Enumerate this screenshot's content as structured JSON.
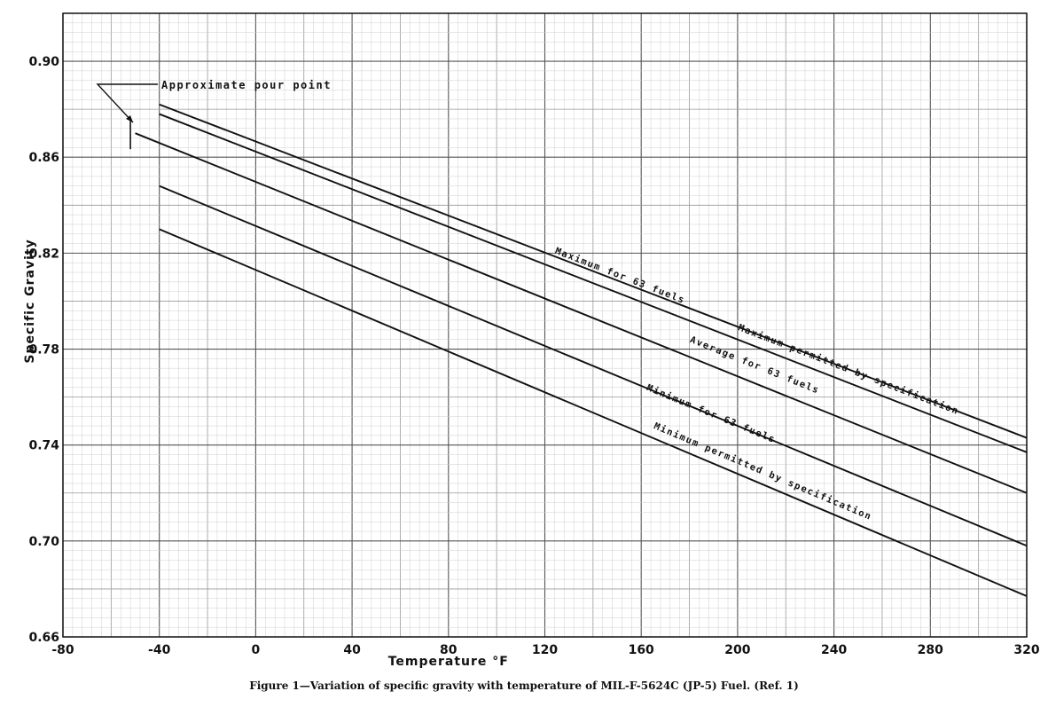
{
  "chart_data": {
    "type": "line",
    "xlabel": "Temperature °F",
    "ylabel": "Specific Gravity",
    "xlim": [
      -80,
      320
    ],
    "ylim": [
      0.66,
      0.92
    ],
    "x_ticks": [
      "-80",
      "-40",
      "0",
      "40",
      "80",
      "120",
      "160",
      "200",
      "240",
      "280",
      "320"
    ],
    "y_ticks": [
      "0.66",
      "0.70",
      "0.74",
      "0.78",
      "0.82",
      "0.86",
      "0.90"
    ],
    "grid": true,
    "series": [
      {
        "name": "Maximum permitted by specification",
        "x": [
          -40,
          320
        ],
        "y": [
          0.882,
          0.743
        ],
        "label_at": [
          200,
          0.788
        ]
      },
      {
        "name": "Maximum for 63 fuels",
        "x": [
          -40,
          320
        ],
        "y": [
          0.878,
          0.737
        ],
        "label_at": [
          124,
          0.82
        ]
      },
      {
        "name": "Average for 63 fuels",
        "x": [
          -50,
          320
        ],
        "y": [
          0.87,
          0.72
        ],
        "label_at": [
          180,
          0.783
        ]
      },
      {
        "name": "Minimum for 63 fuels",
        "x": [
          -40,
          320
        ],
        "y": [
          0.848,
          0.698
        ],
        "label_at": [
          162,
          0.763
        ]
      },
      {
        "name": "Minimum permitted by specification",
        "x": [
          -40,
          320
        ],
        "y": [
          0.83,
          0.677
        ],
        "label_at": [
          165,
          0.747
        ]
      }
    ],
    "annotations": [
      {
        "text": "Approximate pour point",
        "x": -52,
        "y": 0.87
      }
    ]
  },
  "caption": "Figure 1—Variation of specific gravity with temperature of MIL-F-5624C (JP-5) Fuel.   (Ref. 1)"
}
